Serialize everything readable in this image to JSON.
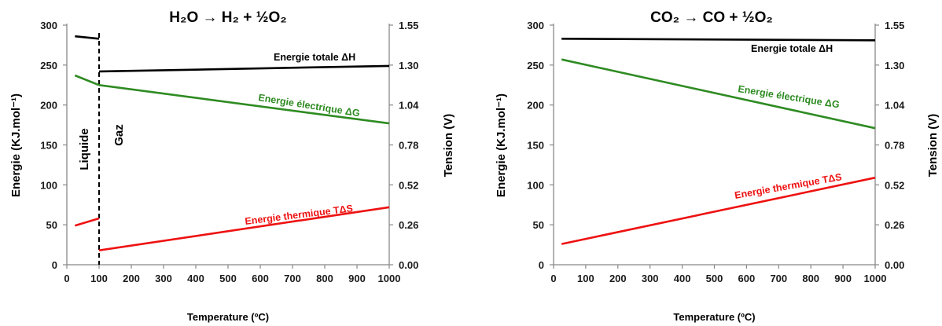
{
  "chart_data": [
    {
      "type": "line",
      "title": "H₂O → H₂ + ½O₂",
      "xlabel": "Temperature (ºC)",
      "ylabel": "Energie (KJ.mol⁻¹)",
      "y2label": "Tension (V)",
      "xlim": [
        0,
        1000
      ],
      "ylim": [
        0,
        300
      ],
      "xticks": [
        "0",
        "100",
        "200",
        "300",
        "400",
        "500",
        "600",
        "700",
        "800",
        "900",
        "1000"
      ],
      "yticks": [
        "0",
        "50",
        "100",
        "150",
        "200",
        "250",
        "300"
      ],
      "y2ticks": [
        "0.00",
        "0.26",
        "0.52",
        "0.78",
        "1.04",
        "1.30",
        "1.55"
      ],
      "region_labels": [
        "Liquide",
        "Gaz"
      ],
      "phase_boundary_x": 100,
      "series": [
        {
          "name": "Energie totale ΔH",
          "color": "#000000",
          "segments": [
            [
              [
                25,
                286
              ],
              [
                100,
                283
              ]
            ],
            [
              [
                100,
                242
              ],
              [
                1000,
                249
              ]
            ]
          ]
        },
        {
          "name": "Energie électrique ΔG",
          "color": "#2e8b22",
          "segments": [
            [
              [
                25,
                237
              ],
              [
                100,
                225
              ]
            ],
            [
              [
                100,
                225
              ],
              [
                1000,
                177
              ]
            ]
          ]
        },
        {
          "name": "Energie thermique TΔS",
          "color": "#ee1111",
          "segments": [
            [
              [
                25,
                49
              ],
              [
                100,
                58
              ]
            ],
            [
              [
                100,
                18
              ],
              [
                1000,
                72
              ]
            ]
          ]
        }
      ]
    },
    {
      "type": "line",
      "title": "CO₂ → CO + ½O₂",
      "xlabel": "Temperature (ºC)",
      "ylabel": "Energie (KJ.mol⁻¹)",
      "y2label": "Tension (V)",
      "xlim": [
        0,
        1000
      ],
      "ylim": [
        0,
        300
      ],
      "xticks": [
        "0",
        "100",
        "200",
        "300",
        "400",
        "500",
        "600",
        "700",
        "800",
        "900",
        "1000"
      ],
      "yticks": [
        "0",
        "50",
        "100",
        "150",
        "200",
        "250",
        "300"
      ],
      "y2ticks": [
        "0.00",
        "0.26",
        "0.52",
        "0.78",
        "1.04",
        "1.30",
        "1.55"
      ],
      "series": [
        {
          "name": "Energie totale ΔH",
          "color": "#000000",
          "segments": [
            [
              [
                25,
                283
              ],
              [
                1000,
                281
              ]
            ]
          ]
        },
        {
          "name": "Energie électrique ΔG",
          "color": "#2e8b22",
          "segments": [
            [
              [
                25,
                257
              ],
              [
                1000,
                171
              ]
            ]
          ]
        },
        {
          "name": "Energie thermique TΔS",
          "color": "#ee1111",
          "segments": [
            [
              [
                25,
                26
              ],
              [
                1000,
                109
              ]
            ]
          ]
        }
      ]
    }
  ]
}
